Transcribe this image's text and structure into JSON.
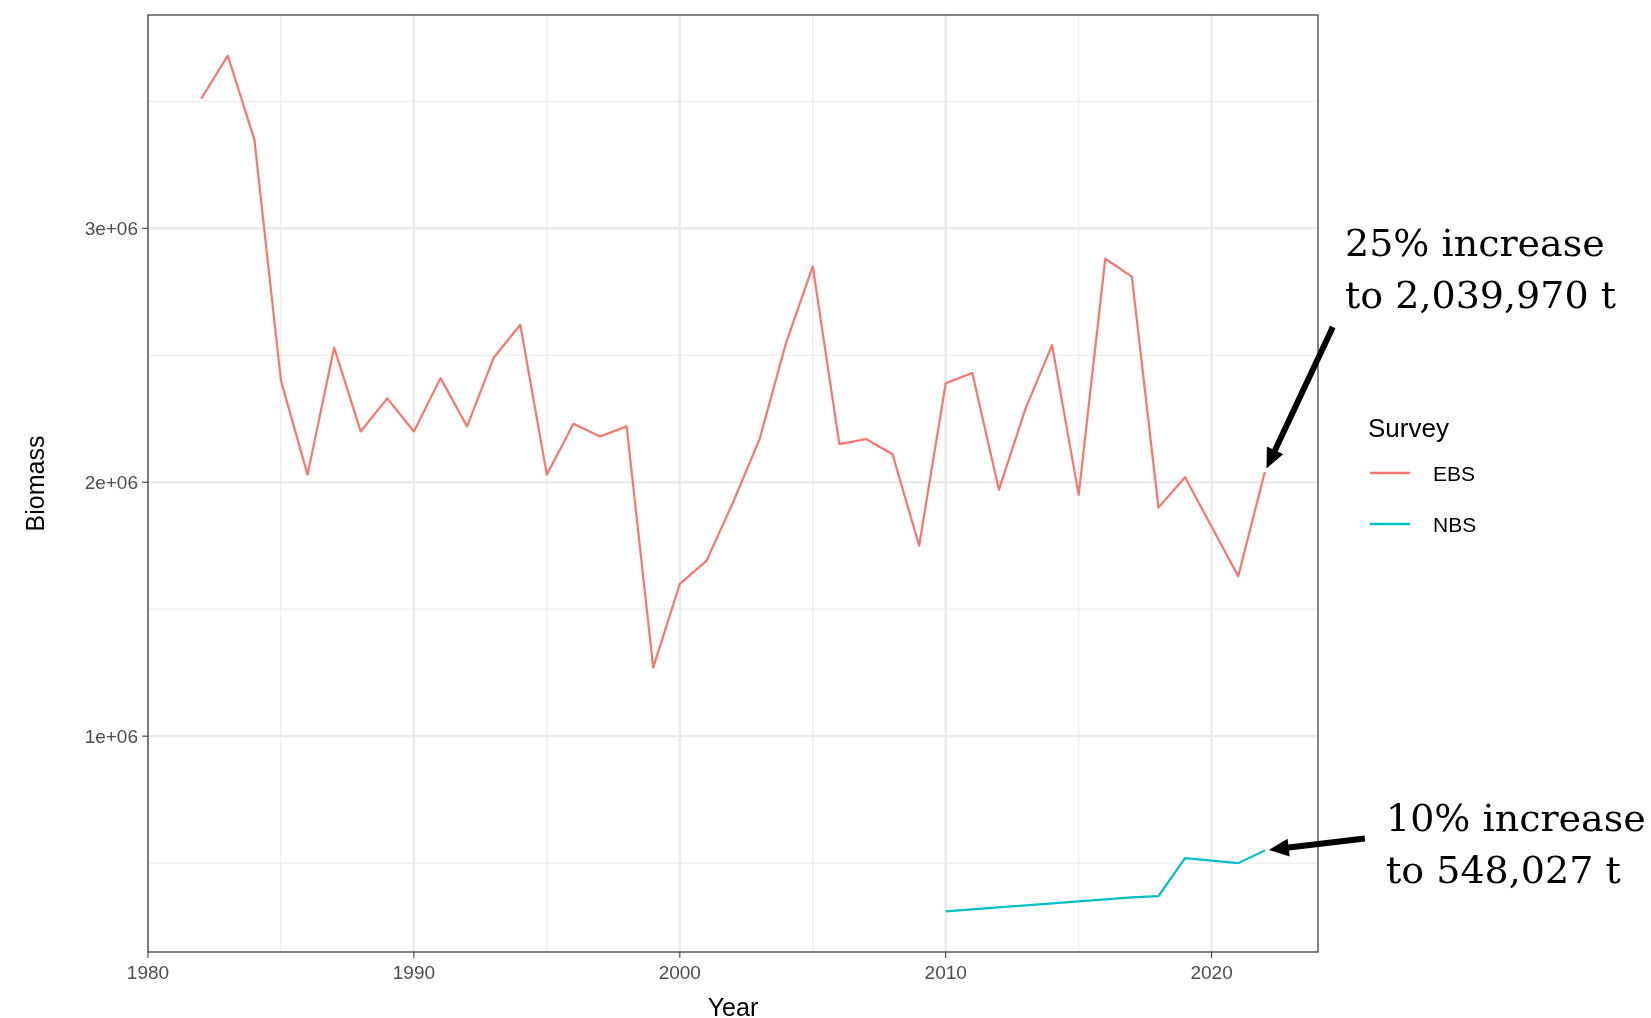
{
  "chart_data": {
    "type": "line",
    "xlabel": "Year",
    "ylabel": "Biomass",
    "legend_title": "Survey",
    "legend": "right",
    "grid": true,
    "xlim": [
      1980,
      2024
    ],
    "xticks": [
      1980,
      1990,
      2000,
      2010,
      2020
    ],
    "ylim": [
      150000,
      3840000
    ],
    "yticks": [
      {
        "value": 1000000,
        "label": "1e+06"
      },
      {
        "value": 2000000,
        "label": "2e+06"
      },
      {
        "value": 3000000,
        "label": "3e+06"
      }
    ],
    "series": [
      {
        "name": "EBS",
        "color": "#f8766d",
        "x": [
          1982,
          1983,
          1984,
          1985,
          1986,
          1987,
          1988,
          1989,
          1990,
          1991,
          1992,
          1993,
          1994,
          1995,
          1996,
          1997,
          1998,
          1999,
          2000,
          2001,
          2002,
          2003,
          2004,
          2005,
          2006,
          2007,
          2008,
          2009,
          2010,
          2011,
          2012,
          2013,
          2014,
          2015,
          2016,
          2017,
          2018,
          2019,
          2021,
          2022
        ],
        "values": [
          3510000,
          3680000,
          3350000,
          2400000,
          2030000,
          2530000,
          2200000,
          2330000,
          2200000,
          2410000,
          2220000,
          2490000,
          2620000,
          2030000,
          2230000,
          2180000,
          2220000,
          1270000,
          1600000,
          1690000,
          1920000,
          2170000,
          2550000,
          2850000,
          2150000,
          2170000,
          2110000,
          1750000,
          2390000,
          2430000,
          1970000,
          2290000,
          2540000,
          1950000,
          2880000,
          2810000,
          1900000,
          2020000,
          1630000,
          2040000
        ]
      },
      {
        "name": "NBS",
        "color": "#00bfc4",
        "x": [
          2010,
          2017,
          2018,
          2019,
          2021,
          2022
        ],
        "values": [
          310000,
          365000,
          370000,
          520000,
          500000,
          550000
        ]
      }
    ],
    "annotations": [
      "25% increase\nto 2,039,970 t",
      "10% increase\nto 548,027 t"
    ]
  }
}
